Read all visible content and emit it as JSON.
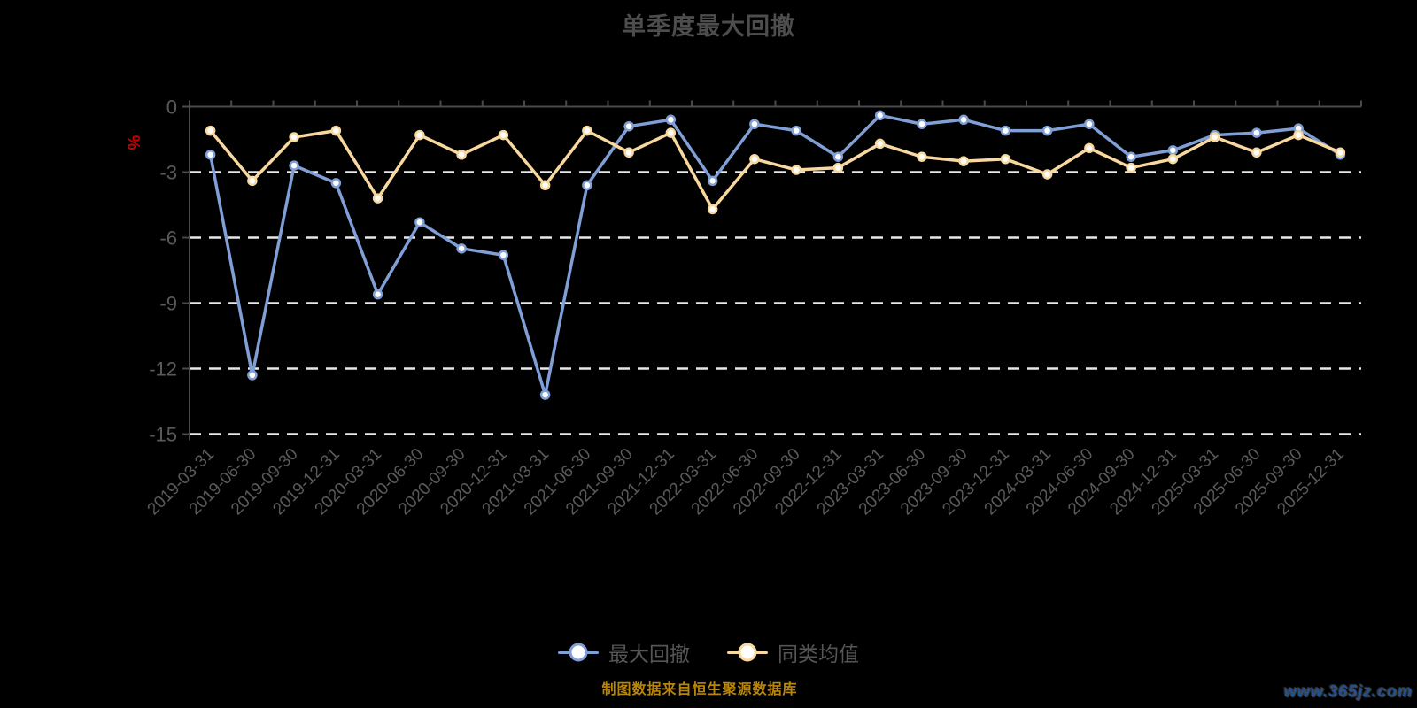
{
  "title": "单季度最大回撤",
  "colors": {
    "series_blue": "#7f9fd6",
    "series_yellow": "#f8d89e",
    "axis": "#4a4a4a",
    "axis_label": "#5a5a5a",
    "grid": "#e8e8e8",
    "title": "#4d4d4d",
    "ylabel": "#cc0000",
    "source": "#b8860b",
    "watermark": "#23518f",
    "marker_fill": "#ffffff"
  },
  "legend": [
    {
      "label": "最大回撤"
    },
    {
      "label": "同类均值"
    }
  ],
  "footer": {
    "source": "制图数据来自恒生聚源数据库",
    "watermark": "www.365jz.com"
  },
  "chart_data": {
    "type": "line",
    "title": "单季度最大回撤",
    "ylabel": "%",
    "ylim": [
      -15,
      0
    ],
    "yticks": [
      0,
      -3,
      -6,
      -9,
      -12,
      -15
    ],
    "grid": "dashed-horizontal",
    "legend_position": "bottom",
    "categories": [
      "2019-03-31",
      "2019-06-30",
      "2019-09-30",
      "2019-12-31",
      "2020-03-31",
      "2020-06-30",
      "2020-09-30",
      "2020-12-31",
      "2021-03-31",
      "2021-06-30",
      "2021-09-30",
      "2021-12-31",
      "2022-03-31",
      "2022-06-30",
      "2022-09-30",
      "2022-12-31",
      "2023-03-31",
      "2023-06-30",
      "2023-09-30",
      "2023-12-31",
      "2024-03-31",
      "2024-06-30",
      "2024-09-30",
      "2024-12-31",
      "2025-03-31",
      "2025-06-30",
      "2025-09-30",
      "2025-12-31"
    ],
    "series": [
      {
        "name": "最大回撤",
        "color": "#7f9fd6",
        "values": [
          -2.2,
          -12.3,
          -2.7,
          -3.5,
          -8.6,
          -5.3,
          -6.5,
          -6.8,
          -13.2,
          -3.6,
          -0.9,
          -0.6,
          -3.4,
          -0.8,
          -1.1,
          -2.3,
          -0.4,
          -0.8,
          -0.6,
          -1.1,
          -1.1,
          -0.8,
          -2.3,
          -2.0,
          -1.3,
          -1.2,
          -1.0,
          -2.2
        ]
      },
      {
        "name": "同类均值",
        "color": "#f8d89e",
        "values": [
          -1.1,
          -3.4,
          -1.4,
          -1.1,
          -4.2,
          -1.3,
          -2.2,
          -1.3,
          -3.6,
          -1.1,
          -2.1,
          -1.2,
          -4.7,
          -2.4,
          -2.9,
          -2.8,
          -1.7,
          -2.3,
          -2.5,
          -2.4,
          -3.1,
          -1.9,
          -2.8,
          -2.4,
          -1.4,
          -2.1,
          -1.3,
          -2.1
        ]
      }
    ]
  }
}
